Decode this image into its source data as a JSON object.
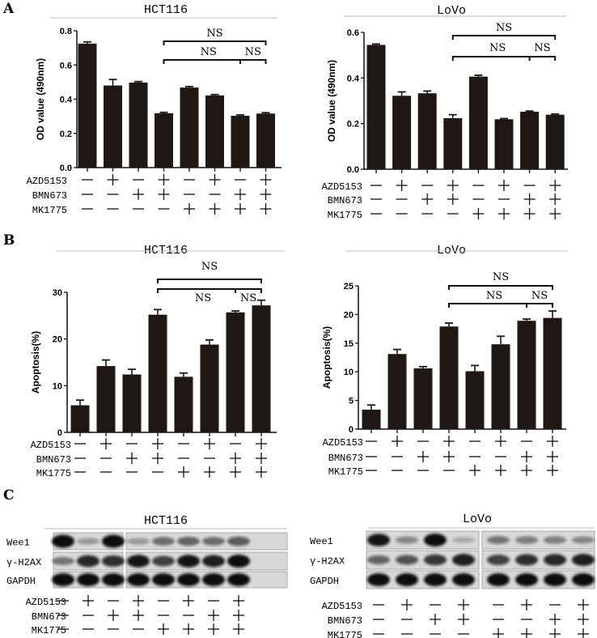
{
  "panel_labels": [
    "A",
    "B",
    "C"
  ],
  "treatment_names": [
    "AZD5153",
    "BMN673",
    "MK1775"
  ],
  "treatments": [
    [
      "-",
      "+",
      "-",
      "+",
      "-",
      "+",
      "-",
      "+"
    ],
    [
      "-",
      "-",
      "+",
      "+",
      "-",
      "-",
      "+",
      "+"
    ],
    [
      "-",
      "-",
      "-",
      "-",
      "+",
      "+",
      "+",
      "+"
    ]
  ],
  "colors": {
    "bar": "#1e1714",
    "rule": "#bbbbbb",
    "blot_bg": "#d8d8d8",
    "band": "#111111"
  },
  "chart_data": [
    {
      "type": "bar",
      "panel": "A",
      "title": "HCT116",
      "ylabel": "OD value (490nm)",
      "ylim": [
        0,
        0.8
      ],
      "yticks": [
        "0.0",
        "0.2",
        "0.4",
        "0.6",
        "0.8"
      ],
      "values": [
        0.725,
        0.48,
        0.497,
        0.318,
        0.468,
        0.422,
        0.303,
        0.316
      ],
      "errors": [
        0.01,
        0.035,
        0.006,
        0.005,
        0.006,
        0.005,
        0.005,
        0.005
      ],
      "annotations": [
        "NS",
        "NS",
        "NS"
      ]
    },
    {
      "type": "bar",
      "panel": "A",
      "title": "LoVo",
      "ylabel": "OD value (490nm)",
      "ylim": [
        0,
        0.6
      ],
      "yticks": [
        "0.0",
        "0.2",
        "0.4",
        "0.6"
      ],
      "values": [
        0.545,
        0.322,
        0.333,
        0.224,
        0.406,
        0.219,
        0.252,
        0.239
      ],
      "errors": [
        0.004,
        0.017,
        0.01,
        0.015,
        0.006,
        0.003,
        0.003,
        0.003
      ],
      "annotations": [
        "NS",
        "NS",
        "NS"
      ]
    },
    {
      "type": "bar",
      "panel": "B",
      "title": "HCT116",
      "ylabel": "Apoptosis(%)",
      "ylim": [
        0,
        30
      ],
      "yticks": [
        "0",
        "10",
        "20",
        "30"
      ],
      "values": [
        5.8,
        14.2,
        12.4,
        25.2,
        11.9,
        18.8,
        25.7,
        27.2
      ],
      "errors": [
        1.1,
        1.3,
        1.1,
        1.1,
        0.8,
        1.0,
        0.3,
        1.1
      ],
      "annotations": [
        "NS",
        "NS",
        "NS"
      ]
    },
    {
      "type": "bar",
      "panel": "B",
      "title": "LoVo",
      "ylabel": "Apoptosis(%)",
      "ylim": [
        0,
        25
      ],
      "yticks": [
        "0",
        "5",
        "10",
        "15",
        "20",
        "25"
      ],
      "values": [
        3.4,
        13.1,
        10.6,
        17.9,
        10.1,
        14.8,
        18.9,
        19.4
      ],
      "errors": [
        0.8,
        0.8,
        0.3,
        0.6,
        1.0,
        1.4,
        0.3,
        1.2
      ],
      "annotations": [
        "NS",
        "NS",
        "NS"
      ]
    }
  ],
  "blots": [
    {
      "title": "HCT116",
      "rows": [
        {
          "label": "Wee1",
          "intensity": [
            1,
            0.2,
            1,
            0.2,
            0.45,
            0.5,
            0.45,
            0.55
          ]
        },
        {
          "label": "γ-H2AX",
          "intensity": [
            0.4,
            0.85,
            0.8,
            0.95,
            0.7,
            0.95,
            0.9,
            1
          ]
        },
        {
          "label": "GAPDH",
          "intensity": [
            1,
            1,
            1,
            1,
            1,
            1,
            1,
            1
          ]
        }
      ]
    },
    {
      "title": "LoVo",
      "rows": [
        {
          "label": "Wee1",
          "intensity": [
            0.95,
            0.3,
            1,
            0.1,
            0.4,
            0.35,
            0.35,
            0.3
          ]
        },
        {
          "label": "γ-H2AX",
          "intensity": [
            0.5,
            0.6,
            0.75,
            0.9,
            0.7,
            0.8,
            0.85,
            0.9
          ]
        },
        {
          "label": "GAPDH",
          "intensity": [
            1,
            1,
            1,
            1,
            1,
            1,
            1,
            1
          ]
        }
      ]
    }
  ]
}
